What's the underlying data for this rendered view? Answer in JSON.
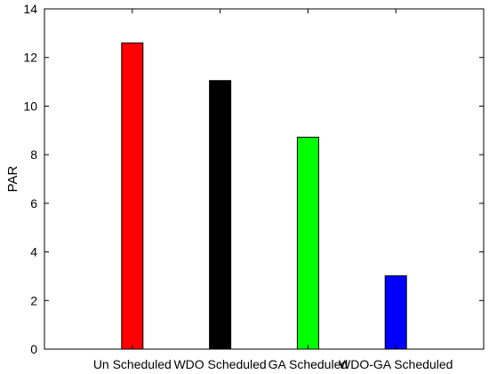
{
  "chart_data": {
    "type": "bar",
    "categories": [
      "Un Scheduled",
      "WDO Scheduled",
      "GA Scheduled",
      "WDO-GA Scheduled"
    ],
    "values": [
      12.6,
      11.05,
      8.72,
      3.02
    ],
    "bar_colors": [
      "#ff0000",
      "#000000",
      "#00ff00",
      "#0000ff"
    ],
    "title": "",
    "xlabel": "",
    "ylabel": "PAR",
    "ylim": [
      0,
      14
    ],
    "yticks": [
      0,
      2,
      4,
      6,
      8,
      10,
      12,
      14
    ],
    "grid": false,
    "legend": "none"
  }
}
